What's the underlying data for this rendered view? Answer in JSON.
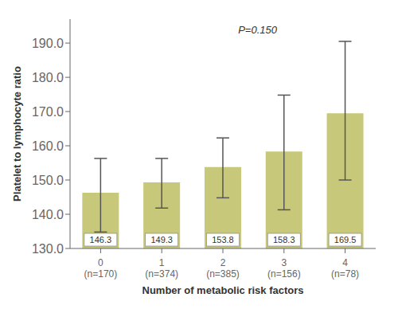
{
  "chart_data": {
    "type": "bar",
    "categories": [
      "0\n(n=170)",
      "1\n(n=374)",
      "2\n(n=385)",
      "3\n(n=156)",
      "4\n(n=78)"
    ],
    "values": [
      146.3,
      149.3,
      153.8,
      158.3,
      169.5
    ],
    "errors_lower": [
      11.5,
      7.5,
      9.0,
      17.0,
      19.5
    ],
    "errors_upper": [
      10.0,
      7.0,
      8.5,
      16.5,
      21.0
    ],
    "color": "#c8c87a",
    "ylim": [
      130,
      197
    ],
    "yticks": [
      {
        "value": 130,
        "label": "130.0"
      },
      {
        "value": 140,
        "label": "140.0"
      },
      {
        "value": 150,
        "label": "150.0"
      },
      {
        "value": 160,
        "label": "160.0"
      },
      {
        "value": 170,
        "label": "170.0"
      },
      {
        "value": 180,
        "label": "180.0"
      },
      {
        "value": 190,
        "label": "190.0"
      }
    ],
    "ylabel": "Platelet to lymphocyte ratio",
    "xlabel": "Number of metabolic risk factors",
    "annotation": "P=0.150",
    "data_labels": true,
    "grid": false
  }
}
